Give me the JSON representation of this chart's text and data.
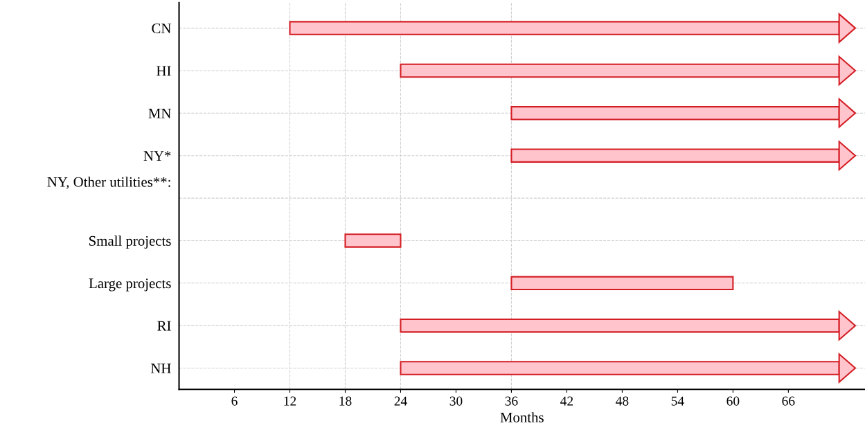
{
  "chart_data": {
    "type": "bar",
    "orientation": "horizontal",
    "xlabel": "Months",
    "categories": [
      "CN",
      "HI",
      "MN",
      "NY*",
      null,
      "Small projects",
      "Large projects",
      "RI",
      "NH"
    ],
    "series": [
      {
        "color": "#ffc4cc",
        "marker": "triangle",
        "base": [
          12,
          24,
          36,
          36,
          null,
          null,
          null,
          24,
          24
        ],
        "values": [
          59.5,
          47.5,
          35.5,
          35.5,
          null,
          null,
          null,
          47.5,
          47.5
        ]
      },
      {
        "color": "#ffc4cc",
        "base": [
          null,
          null,
          null,
          null,
          null,
          18,
          36,
          null,
          null
        ],
        "values": [
          null,
          null,
          null,
          null,
          null,
          6,
          24,
          null,
          null
        ]
      }
    ],
    "xlim": [
      0,
      74.3
    ],
    "xticks": [
      6,
      12,
      18,
      24,
      30,
      36,
      42,
      48,
      54,
      60,
      66
    ],
    "grid": "y",
    "annotations": [
      "NY, Other utilities**:"
    ],
    "ref_lines": [
      {
        "axis": "x",
        "value": 12,
        "color": "#d0d0d0",
        "line_style": "dashed"
      },
      {
        "axis": "x",
        "value": 18,
        "color": "#d0d0d0",
        "line_style": "dashed"
      },
      {
        "axis": "x",
        "value": 24,
        "color": "#d0d0d0",
        "line_style": "dashed"
      },
      {
        "axis": "x",
        "value": 36,
        "color": "#d0d0d0",
        "line_style": "dashed"
      }
    ]
  }
}
